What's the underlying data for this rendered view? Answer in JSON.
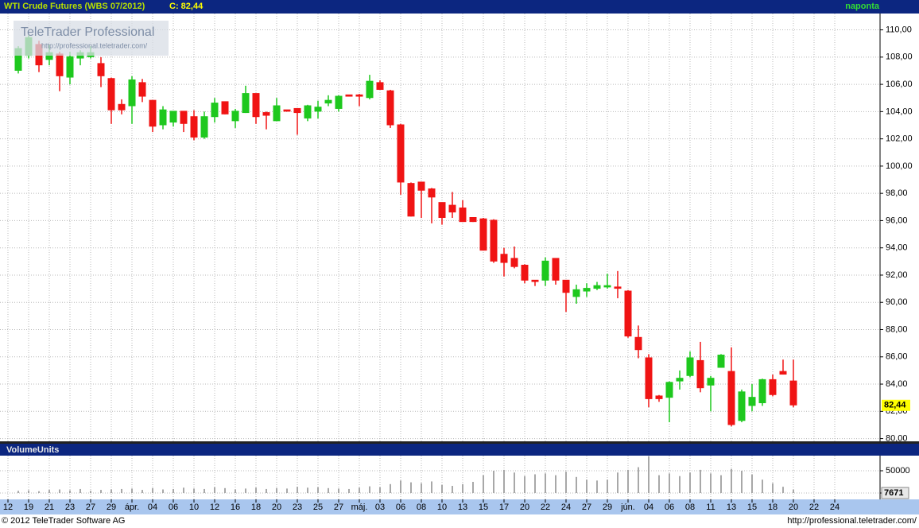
{
  "header": {
    "title": "WTI Crude Futures (WBS 07/2012)",
    "close": "C: 82,44",
    "period": "naponta"
  },
  "watermark": {
    "brand": "TeleTrader Professional",
    "url": "http://professional.teletrader.com/"
  },
  "footer": {
    "copyright": "© 2012 TeleTrader Software AG",
    "url": "http://professional.teletrader.com/"
  },
  "chart_data": [
    {
      "type": "candlestick",
      "up_color": "#1ec81e",
      "down_color": "#f01414",
      "grid": true,
      "categories": [
        "12",
        null,
        "19",
        null,
        "21",
        null,
        "23",
        null,
        "27",
        null,
        "29",
        null,
        "ápr.",
        null,
        "04",
        null,
        "06",
        null,
        "10",
        null,
        "12",
        null,
        "16",
        null,
        "18",
        null,
        "20",
        null,
        "23",
        null,
        "25",
        null,
        "27",
        null,
        "máj.",
        null,
        "03",
        null,
        "06",
        null,
        "08",
        null,
        "10",
        null,
        "13",
        null,
        "15",
        null,
        "17",
        null,
        "20",
        null,
        "22",
        null,
        "24",
        null,
        "27",
        null,
        "29",
        null,
        "jún.",
        null,
        "04",
        null,
        "06",
        null,
        "08",
        null,
        "11",
        null,
        "13",
        null,
        "15",
        null,
        "18",
        null,
        "20",
        null,
        "22",
        null,
        "24",
        null
      ],
      "open": [
        null,
        107.0,
        108.1,
        108.9,
        107.8,
        108.2,
        106.5,
        107.9,
        108.0,
        107.5,
        106.4,
        104.5,
        104.4,
        106.1,
        104.8,
        103.0,
        103.2,
        104.0,
        103.6,
        102.1,
        103.6,
        104.7,
        103.3,
        103.9,
        105.3,
        103.9,
        103.3,
        104.1,
        104.2,
        103.5,
        104.0,
        104.6,
        104.2,
        105.2,
        105.2,
        105.0,
        106.1,
        105.5,
        103.0,
        98.7,
        98.8,
        98.3,
        97.3,
        97.1,
        96.9,
        96.2,
        96.1,
        96.0,
        93.5,
        93.2,
        92.7,
        91.6,
        91.6,
        93.2,
        91.6,
        90.4,
        90.8,
        91.0,
        91.1,
        91.1,
        90.8,
        87.4,
        85.9,
        83.1,
        83.0,
        84.2,
        84.6,
        85.7,
        83.9,
        85.2,
        84.9,
        81.3,
        82.4,
        82.6,
        84.3,
        84.9,
        84.2,
        null,
        null,
        null,
        null,
        null
      ],
      "high": [
        null,
        108.8,
        109.6,
        109.2,
        108.9,
        108.4,
        108.4,
        108.5,
        108.8,
        108.0,
        106.5,
        104.9,
        106.6,
        106.4,
        104.8,
        104.4,
        104.0,
        104.0,
        104.1,
        104.0,
        105.0,
        104.7,
        104.2,
        105.9,
        105.3,
        104.0,
        105.0,
        104.1,
        104.2,
        104.5,
        104.8,
        105.2,
        105.2,
        105.2,
        105.3,
        106.7,
        106.3,
        105.6,
        103.1,
        98.8,
        98.8,
        98.4,
        97.3,
        98.1,
        97.5,
        96.2,
        96.2,
        96.1,
        94.0,
        94.1,
        92.8,
        91.6,
        93.3,
        93.2,
        91.6,
        91.3,
        91.4,
        91.5,
        92.1,
        92.3,
        90.9,
        88.3,
        86.2,
        83.2,
        84.2,
        85.0,
        86.4,
        87.1,
        84.6,
        86.2,
        86.7,
        83.6,
        84.0,
        84.4,
        84.7,
        85.8,
        85.8,
        null,
        null,
        null,
        null,
        null
      ],
      "low": [
        null,
        106.8,
        107.9,
        106.9,
        107.4,
        105.5,
        106.0,
        107.4,
        107.9,
        105.8,
        103.1,
        103.8,
        103.1,
        104.7,
        102.5,
        102.7,
        102.9,
        102.5,
        101.9,
        102.0,
        103.2,
        103.8,
        102.8,
        103.9,
        103.1,
        102.7,
        103.3,
        104.0,
        102.3,
        103.3,
        103.5,
        104.4,
        104.0,
        105.1,
        104.4,
        104.9,
        105.6,
        102.8,
        97.9,
        96.3,
        96.2,
        95.8,
        95.7,
        96.2,
        95.9,
        95.9,
        93.8,
        92.9,
        91.9,
        92.5,
        91.4,
        91.2,
        91.2,
        91.3,
        89.3,
        89.9,
        90.4,
        90.9,
        91.0,
        90.3,
        87.4,
        85.9,
        82.3,
        82.7,
        81.2,
        83.6,
        84.5,
        83.4,
        82.0,
        85.2,
        80.9,
        81.2,
        82.0,
        82.4,
        83.1,
        84.7,
        82.3,
        null,
        null,
        null,
        null,
        null
      ],
      "close": [
        null,
        108.6,
        109.4,
        107.4,
        108.3,
        106.6,
        108.0,
        108.3,
        108.3,
        106.6,
        104.1,
        104.1,
        106.3,
        105.1,
        102.9,
        104.1,
        104.0,
        103.1,
        102.1,
        103.6,
        104.6,
        103.8,
        104.0,
        105.3,
        103.6,
        103.7,
        104.4,
        104.0,
        103.9,
        104.4,
        104.3,
        104.8,
        105.1,
        105.1,
        105.1,
        106.2,
        105.6,
        103.0,
        98.8,
        96.3,
        98.2,
        97.7,
        96.2,
        96.6,
        95.9,
        95.9,
        93.8,
        93.0,
        92.9,
        92.6,
        91.6,
        91.5,
        93.0,
        91.6,
        90.7,
        90.9,
        91.0,
        91.2,
        91.2,
        91.0,
        87.5,
        86.5,
        82.9,
        82.9,
        84.1,
        84.4,
        85.9,
        83.7,
        84.4,
        86.1,
        81.0,
        83.4,
        83.0,
        84.3,
        83.2,
        84.7,
        82.44,
        null,
        null,
        null,
        null,
        null
      ],
      "close_label": "82,44",
      "ylim": [
        79.8,
        111.2
      ],
      "yticks": [
        {
          "value": 80,
          "label": "80,00"
        },
        {
          "value": 82,
          "label": "82,00"
        },
        {
          "value": 84,
          "label": "84,00"
        },
        {
          "value": 86,
          "label": "86,00"
        },
        {
          "value": 88,
          "label": "88,00"
        },
        {
          "value": 90,
          "label": "90,00"
        },
        {
          "value": 92,
          "label": "92,00"
        },
        {
          "value": 94,
          "label": "94,00"
        },
        {
          "value": 96,
          "label": "96,00"
        },
        {
          "value": 98,
          "label": "98,00"
        },
        {
          "value": 100,
          "label": "100,00"
        },
        {
          "value": 102,
          "label": "102,00"
        },
        {
          "value": 104,
          "label": "104,00"
        },
        {
          "value": 106,
          "label": "106,00"
        },
        {
          "value": 108,
          "label": "108,00"
        },
        {
          "value": 110,
          "label": "110,00"
        }
      ]
    },
    {
      "type": "bar",
      "title": "VolumeUnits",
      "color": "#8c8c8c",
      "grid": true,
      "values": [
        null,
        5000,
        6000,
        4000,
        7000,
        8000,
        6000,
        9000,
        5000,
        7000,
        8000,
        9000,
        10000,
        7000,
        11000,
        8000,
        9000,
        12000,
        10000,
        9000,
        13000,
        11000,
        8000,
        10000,
        12000,
        9000,
        11000,
        10000,
        14000,
        12000,
        13000,
        11000,
        10000,
        9000,
        12000,
        15000,
        13000,
        20000,
        28000,
        24000,
        22000,
        26000,
        18000,
        16000,
        20000,
        25000,
        40000,
        50000,
        52000,
        46000,
        38000,
        42000,
        44000,
        40000,
        48000,
        36000,
        30000,
        28000,
        30000,
        46000,
        52000,
        58000,
        82000,
        40000,
        44000,
        38000,
        46000,
        52000,
        44000,
        40000,
        54000,
        50000,
        42000,
        30000,
        22000,
        14000,
        7671,
        null,
        null,
        null,
        null,
        null
      ],
      "ylim": [
        -14300,
        83900
      ],
      "yticks": [
        0,
        50000
      ]
    }
  ]
}
